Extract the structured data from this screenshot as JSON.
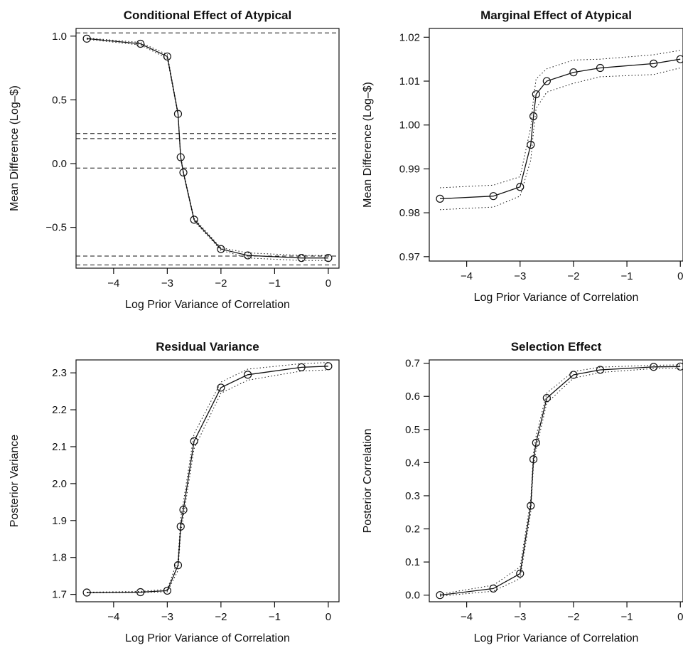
{
  "chart_data": [
    {
      "type": "line",
      "title": "Conditional Effect of Atypical",
      "xlabel": "Log Prior Variance of Correlation",
      "ylabel": "Mean Difference (Log–$)",
      "xlim": [
        -4.7,
        0.2
      ],
      "ylim": [
        -0.82,
        1.06
      ],
      "xticks": [
        -4,
        -3,
        -2,
        -1,
        0
      ],
      "xtick_labels": [
        "−4",
        "−3",
        "−2",
        "−1",
        "0"
      ],
      "yticks": [
        -0.5,
        0.0,
        0.5,
        1.0
      ],
      "ytick_labels": [
        "−0.5",
        "0.0",
        "0.5",
        "1.0"
      ],
      "grid": false,
      "reference_lines": [
        1.025,
        0.236,
        0.196,
        -0.035,
        -0.725,
        -0.795
      ],
      "series": [
        {
          "style": "solid-circle-markers",
          "x": [
            -4.5,
            -3.5,
            -3.0,
            -2.8,
            -2.75,
            -2.7,
            -2.5,
            -2.0,
            -1.5,
            -0.5,
            0.0
          ],
          "y": [
            0.98,
            0.94,
            0.84,
            0.39,
            0.05,
            -0.07,
            -0.44,
            -0.67,
            -0.72,
            -0.74,
            -0.74
          ]
        },
        {
          "style": "dotted",
          "x": [
            -4.5,
            -3.5,
            -3.0,
            -2.8,
            -2.75,
            -2.7,
            -2.5,
            -2.0,
            -1.5,
            -0.5,
            0.0
          ],
          "y": [
            0.985,
            0.95,
            0.855,
            0.4,
            0.06,
            -0.06,
            -0.43,
            -0.66,
            -0.7,
            -0.72,
            -0.72
          ]
        },
        {
          "style": "dotted",
          "x": [
            -4.5,
            -3.5,
            -3.0,
            -2.8,
            -2.75,
            -2.7,
            -2.5,
            -2.0,
            -1.5,
            -0.5,
            0.0
          ],
          "y": [
            0.975,
            0.93,
            0.825,
            0.38,
            0.04,
            -0.08,
            -0.45,
            -0.68,
            -0.74,
            -0.76,
            -0.76
          ]
        }
      ]
    },
    {
      "type": "line",
      "title": "Marginal Effect of Atypical",
      "xlabel": "Log Prior Variance of Correlation",
      "ylabel": "Mean Difference (Log–$)",
      "xlim": [
        -4.7,
        0.05
      ],
      "ylim": [
        0.969,
        1.022
      ],
      "xticks": [
        -4,
        -3,
        -2,
        -1,
        0
      ],
      "xtick_labels": [
        "−4",
        "−3",
        "−2",
        "−1",
        "0"
      ],
      "yticks": [
        0.97,
        0.98,
        0.99,
        1.0,
        1.01,
        1.02
      ],
      "ytick_labels": [
        "0.97",
        "0.98",
        "0.99",
        "1.00",
        "1.01",
        "1.02"
      ],
      "grid": false,
      "series": [
        {
          "style": "solid-circle-markers",
          "x": [
            -4.5,
            -3.5,
            -3.0,
            -2.8,
            -2.75,
            -2.7,
            -2.5,
            -2.0,
            -1.5,
            -0.5,
            0.0
          ],
          "y": [
            0.9832,
            0.9838,
            0.9859,
            0.9955,
            1.002,
            1.007,
            1.01,
            1.012,
            1.013,
            1.014,
            1.015
          ]
        },
        {
          "style": "dotted",
          "x": [
            -4.5,
            -3.5,
            -3.0,
            -2.8,
            -2.75,
            -2.7,
            -2.5,
            -2.0,
            -1.5,
            -0.5,
            0.0
          ],
          "y": [
            0.9857,
            0.9863,
            0.9882,
            0.9995,
            1.006,
            1.0105,
            1.0128,
            1.0148,
            1.015,
            1.016,
            1.017
          ]
        },
        {
          "style": "dotted",
          "x": [
            -4.5,
            -3.5,
            -3.0,
            -2.8,
            -2.75,
            -2.7,
            -2.5,
            -2.0,
            -1.5,
            -0.5,
            0.0
          ],
          "y": [
            0.9807,
            0.9813,
            0.9838,
            0.992,
            0.9985,
            1.0038,
            1.0075,
            1.0095,
            1.011,
            1.0115,
            1.013
          ]
        }
      ]
    },
    {
      "type": "line",
      "title": "Residual Variance",
      "xlabel": "Log Prior Variance of Correlation",
      "ylabel": "Posterior Variance",
      "xlim": [
        -4.7,
        0.2
      ],
      "ylim": [
        1.68,
        2.335
      ],
      "xticks": [
        -4,
        -3,
        -2,
        -1,
        0
      ],
      "xtick_labels": [
        "−4",
        "−3",
        "−2",
        "−1",
        "0"
      ],
      "yticks": [
        1.7,
        1.8,
        1.9,
        2.0,
        2.1,
        2.2,
        2.3
      ],
      "ytick_labels": [
        "1.7",
        "1.8",
        "1.9",
        "2.0",
        "2.1",
        "2.2",
        "2.3"
      ],
      "grid": false,
      "series": [
        {
          "style": "solid-circle-markers",
          "x": [
            -4.5,
            -3.5,
            -3.0,
            -2.8,
            -2.75,
            -2.7,
            -2.5,
            -2.0,
            -1.5,
            -0.5,
            0.0
          ],
          "y": [
            1.705,
            1.706,
            1.71,
            1.779,
            1.884,
            1.929,
            2.115,
            2.26,
            2.295,
            2.315,
            2.318
          ]
        },
        {
          "style": "dotted",
          "x": [
            -4.5,
            -3.5,
            -3.0,
            -2.8,
            -2.75,
            -2.7,
            -2.5,
            -2.0,
            -1.5,
            -0.5,
            0.0
          ],
          "y": [
            1.706,
            1.708,
            1.714,
            1.795,
            1.905,
            1.95,
            2.135,
            2.275,
            2.31,
            2.325,
            2.328
          ]
        },
        {
          "style": "dotted",
          "x": [
            -4.5,
            -3.5,
            -3.0,
            -2.8,
            -2.75,
            -2.7,
            -2.5,
            -2.0,
            -1.5,
            -0.5,
            0.0
          ],
          "y": [
            1.704,
            1.705,
            1.707,
            1.765,
            1.865,
            1.91,
            2.095,
            2.245,
            2.28,
            2.305,
            2.308
          ]
        }
      ]
    },
    {
      "type": "line",
      "title": "Selection Effect",
      "xlabel": "Log Prior Variance of Correlation",
      "ylabel": "Posterior Correlation",
      "xlim": [
        -4.7,
        0.05
      ],
      "ylim": [
        -0.02,
        0.71
      ],
      "xticks": [
        -4,
        -3,
        -2,
        -1,
        0
      ],
      "xtick_labels": [
        "−4",
        "−3",
        "−2",
        "−1",
        "0"
      ],
      "yticks": [
        0.0,
        0.1,
        0.2,
        0.3,
        0.4,
        0.5,
        0.6,
        0.7
      ],
      "ytick_labels": [
        "0.0",
        "0.1",
        "0.2",
        "0.3",
        "0.4",
        "0.5",
        "0.6",
        "0.7"
      ],
      "grid": false,
      "series": [
        {
          "style": "solid-circle-markers",
          "x": [
            -4.5,
            -3.5,
            -3.0,
            -2.8,
            -2.75,
            -2.7,
            -2.5,
            -2.0,
            -1.5,
            -0.5,
            0.0
          ],
          "y": [
            0.0,
            0.02,
            0.065,
            0.27,
            0.41,
            0.46,
            0.595,
            0.665,
            0.68,
            0.689,
            0.69
          ]
        },
        {
          "style": "dotted",
          "x": [
            -4.5,
            -3.5,
            -3.0,
            -2.8,
            -2.75,
            -2.7,
            -2.5,
            -2.0,
            -1.5,
            -0.5,
            0.0
          ],
          "y": [
            0.003,
            0.03,
            0.085,
            0.29,
            0.43,
            0.48,
            0.61,
            0.675,
            0.688,
            0.694,
            0.695
          ]
        },
        {
          "style": "dotted",
          "x": [
            -4.5,
            -3.5,
            -3.0,
            -2.8,
            -2.75,
            -2.7,
            -2.5,
            -2.0,
            -1.5,
            -0.5,
            0.0
          ],
          "y": [
            -0.003,
            0.012,
            0.05,
            0.25,
            0.39,
            0.44,
            0.58,
            0.655,
            0.672,
            0.684,
            0.685
          ]
        }
      ]
    }
  ]
}
